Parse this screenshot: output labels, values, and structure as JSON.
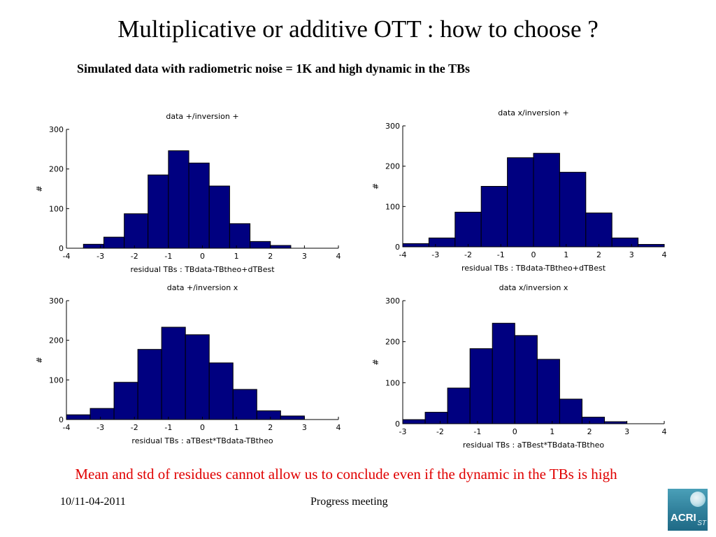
{
  "slide": {
    "title": "Multiplicative or additive OTT : how to choose ?",
    "subtitle": "Simulated data with radiometric noise = 1K and high dynamic in the TBs",
    "conclusion": "Mean and std of residues cannot allow us to conclude even if the dynamic in the TBs is high",
    "footer_date": "10/11-04-2011",
    "footer_center": "Progress meeting",
    "logo_text": "ACRI",
    "logo_sub": "ST"
  },
  "colors": {
    "bar_fill": "#000080",
    "bar_stroke": "#000000",
    "conclusion": "#e00000"
  },
  "chart_data": [
    {
      "type": "bar",
      "title": "data +/inversion +",
      "xlabel": "residual TBs : TBdata-TBtheo+dTBest",
      "ylabel": "#",
      "xlim": [
        -4,
        4
      ],
      "ylim": [
        0,
        300
      ],
      "xticks": [
        -4,
        -3,
        -2,
        -1,
        0,
        1,
        2,
        3,
        4
      ],
      "yticks": [
        0,
        100,
        200,
        300
      ],
      "bins": [
        {
          "x0": -3.5,
          "x1": -2.9,
          "value": 10
        },
        {
          "x0": -2.9,
          "x1": -2.3,
          "value": 28
        },
        {
          "x0": -2.3,
          "x1": -1.6,
          "value": 87
        },
        {
          "x0": -1.6,
          "x1": -1.0,
          "value": 185
        },
        {
          "x0": -1.0,
          "x1": -0.4,
          "value": 246
        },
        {
          "x0": -0.4,
          "x1": 0.2,
          "value": 215
        },
        {
          "x0": 0.2,
          "x1": 0.8,
          "value": 157
        },
        {
          "x0": 0.8,
          "x1": 1.4,
          "value": 62
        },
        {
          "x0": 1.4,
          "x1": 2.0,
          "value": 17
        },
        {
          "x0": 2.0,
          "x1": 2.6,
          "value": 7
        }
      ]
    },
    {
      "type": "bar",
      "title": "data x/inversion +",
      "xlabel": "residual TBs : TBdata-TBtheo+dTBest",
      "ylabel": "#",
      "xlim": [
        -4,
        4
      ],
      "ylim": [
        0,
        300
      ],
      "xticks": [
        -4,
        -3,
        -2,
        -1,
        0,
        1,
        2,
        3,
        4
      ],
      "yticks": [
        0,
        100,
        200,
        300
      ],
      "bins": [
        {
          "x0": -4.0,
          "x1": -3.2,
          "value": 8
        },
        {
          "x0": -3.2,
          "x1": -2.4,
          "value": 22
        },
        {
          "x0": -2.4,
          "x1": -1.6,
          "value": 86
        },
        {
          "x0": -1.6,
          "x1": -0.8,
          "value": 150
        },
        {
          "x0": -0.8,
          "x1": 0.0,
          "value": 221
        },
        {
          "x0": 0.0,
          "x1": 0.8,
          "value": 232
        },
        {
          "x0": 0.8,
          "x1": 1.6,
          "value": 185
        },
        {
          "x0": 1.6,
          "x1": 2.4,
          "value": 84
        },
        {
          "x0": 2.4,
          "x1": 3.2,
          "value": 22
        },
        {
          "x0": 3.2,
          "x1": 4.0,
          "value": 6
        }
      ]
    },
    {
      "type": "bar",
      "title": "data +/inversion x",
      "xlabel": "residual TBs : aTBest*TBdata-TBtheo",
      "ylabel": "#",
      "xlim": [
        -4,
        4
      ],
      "ylim": [
        0,
        300
      ],
      "xticks": [
        -4,
        -3,
        -2,
        -1,
        0,
        1,
        2,
        3,
        4
      ],
      "yticks": [
        0,
        100,
        200,
        300
      ],
      "bins": [
        {
          "x0": -4.0,
          "x1": -3.3,
          "value": 12
        },
        {
          "x0": -3.3,
          "x1": -2.6,
          "value": 28
        },
        {
          "x0": -2.6,
          "x1": -1.9,
          "value": 94
        },
        {
          "x0": -1.9,
          "x1": -1.2,
          "value": 177
        },
        {
          "x0": -1.2,
          "x1": -0.5,
          "value": 233
        },
        {
          "x0": -0.5,
          "x1": 0.2,
          "value": 214
        },
        {
          "x0": 0.2,
          "x1": 0.9,
          "value": 143
        },
        {
          "x0": 0.9,
          "x1": 1.6,
          "value": 76
        },
        {
          "x0": 1.6,
          "x1": 2.3,
          "value": 22
        },
        {
          "x0": 2.3,
          "x1": 3.0,
          "value": 9
        }
      ]
    },
    {
      "type": "bar",
      "title": "data x/inversion x",
      "xlabel": "residual TBs : aTBest*TBdata-TBtheo",
      "ylabel": "#",
      "xlim": [
        -3,
        4
      ],
      "ylim": [
        0,
        300
      ],
      "xticks": [
        -3,
        -2,
        -1,
        0,
        1,
        2,
        3,
        4
      ],
      "yticks": [
        0,
        100,
        200,
        300
      ],
      "bins": [
        {
          "x0": -3.0,
          "x1": -2.4,
          "value": 10
        },
        {
          "x0": -2.4,
          "x1": -1.8,
          "value": 28
        },
        {
          "x0": -1.8,
          "x1": -1.2,
          "value": 87
        },
        {
          "x0": -1.2,
          "x1": -0.6,
          "value": 183
        },
        {
          "x0": -0.6,
          "x1": 0.0,
          "value": 245
        },
        {
          "x0": 0.0,
          "x1": 0.6,
          "value": 215
        },
        {
          "x0": 0.6,
          "x1": 1.2,
          "value": 157
        },
        {
          "x0": 1.2,
          "x1": 1.8,
          "value": 60
        },
        {
          "x0": 1.8,
          "x1": 2.4,
          "value": 16
        },
        {
          "x0": 2.4,
          "x1": 3.0,
          "value": 5
        }
      ]
    }
  ]
}
